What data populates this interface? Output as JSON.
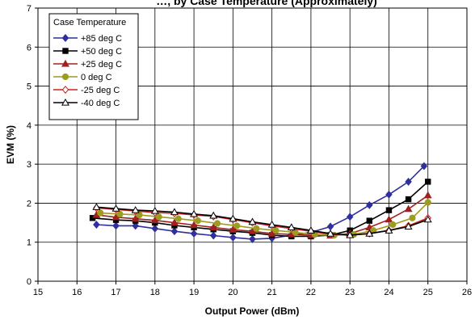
{
  "chart_data": {
    "type": "line",
    "title": "…, by Case Temperature (Approximately)",
    "xlabel": "Output Power (dBm)",
    "ylabel": "EVM (%)",
    "xlim": [
      15,
      26
    ],
    "ylim": [
      0,
      7
    ],
    "xticks": [
      15,
      16,
      17,
      18,
      19,
      20,
      21,
      22,
      23,
      24,
      25,
      26
    ],
    "yticks": [
      0,
      1,
      2,
      3,
      4,
      5,
      6,
      7
    ],
    "grid": true,
    "legend_title": "Case Temperature",
    "legend_position": "top-left",
    "series": [
      {
        "name": "+85 deg C",
        "color": "#2f2f9f",
        "marker": "diamond-filled",
        "x": [
          16.5,
          17.0,
          17.5,
          18.0,
          18.5,
          19.0,
          19.5,
          20.0,
          20.5,
          21.0,
          21.5,
          22.0,
          22.5,
          23.0,
          23.5,
          24.0,
          24.5,
          24.9
        ],
        "y": [
          1.45,
          1.42,
          1.42,
          1.35,
          1.28,
          1.22,
          1.17,
          1.12,
          1.08,
          1.1,
          1.18,
          1.25,
          1.4,
          1.65,
          1.95,
          2.22,
          2.55,
          2.95
        ]
      },
      {
        "name": "+50 deg C",
        "color": "#000000",
        "marker": "square-filled",
        "x": [
          16.4,
          17.0,
          17.5,
          18.0,
          18.5,
          19.0,
          19.5,
          20.0,
          20.5,
          21.0,
          21.5,
          22.0,
          22.5,
          23.0,
          23.5,
          24.0,
          24.5,
          25.0
        ],
        "y": [
          1.62,
          1.57,
          1.55,
          1.5,
          1.43,
          1.38,
          1.33,
          1.28,
          1.24,
          1.18,
          1.15,
          1.15,
          1.18,
          1.3,
          1.55,
          1.82,
          2.1,
          2.55
        ]
      },
      {
        "name": "+25 deg C",
        "color": "#a02020",
        "marker": "triangle-filled",
        "x": [
          16.5,
          17.0,
          17.5,
          18.0,
          18.5,
          19.0,
          19.5,
          20.0,
          20.5,
          21.0,
          21.5,
          22.0,
          22.5,
          23.0,
          23.5,
          24.0,
          24.5,
          25.0
        ],
        "y": [
          1.7,
          1.64,
          1.6,
          1.56,
          1.5,
          1.44,
          1.38,
          1.32,
          1.28,
          1.22,
          1.2,
          1.18,
          1.17,
          1.22,
          1.38,
          1.58,
          1.85,
          2.2
        ]
      },
      {
        "name": "0 deg C",
        "color": "#9c9c1e",
        "marker": "circle-filled",
        "x": [
          16.6,
          17.1,
          17.6,
          18.1,
          18.6,
          19.1,
          19.6,
          20.1,
          20.6,
          21.1,
          21.6,
          22.1,
          22.6,
          23.1,
          23.6,
          24.1,
          24.6,
          25.0
        ],
        "y": [
          1.75,
          1.72,
          1.7,
          1.65,
          1.6,
          1.55,
          1.48,
          1.42,
          1.35,
          1.3,
          1.25,
          1.2,
          1.18,
          1.2,
          1.3,
          1.45,
          1.62,
          2.02
        ]
      },
      {
        "name": "-25 deg C",
        "color": "#cc2020",
        "marker": "diamond-open",
        "x": [
          16.5,
          17.0,
          17.5,
          18.0,
          18.5,
          19.0,
          19.5,
          20.0,
          20.5,
          21.0,
          21.5,
          22.0,
          22.5,
          23.0,
          23.5,
          24.0,
          24.5,
          25.0
        ],
        "y": [
          1.88,
          1.84,
          1.8,
          1.76,
          1.74,
          1.7,
          1.66,
          1.58,
          1.5,
          1.42,
          1.35,
          1.28,
          1.2,
          1.18,
          1.22,
          1.3,
          1.42,
          1.62
        ]
      },
      {
        "name": "-40 deg C",
        "color": "#000000",
        "marker": "triangle-open",
        "x": [
          16.5,
          17.0,
          17.5,
          18.0,
          18.5,
          19.0,
          19.5,
          20.0,
          20.5,
          21.0,
          21.5,
          22.0,
          22.5,
          23.0,
          23.5,
          24.0,
          24.5,
          25.0
        ],
        "y": [
          1.9,
          1.86,
          1.82,
          1.8,
          1.77,
          1.72,
          1.68,
          1.6,
          1.52,
          1.45,
          1.38,
          1.3,
          1.22,
          1.18,
          1.22,
          1.3,
          1.4,
          1.58
        ]
      }
    ]
  }
}
